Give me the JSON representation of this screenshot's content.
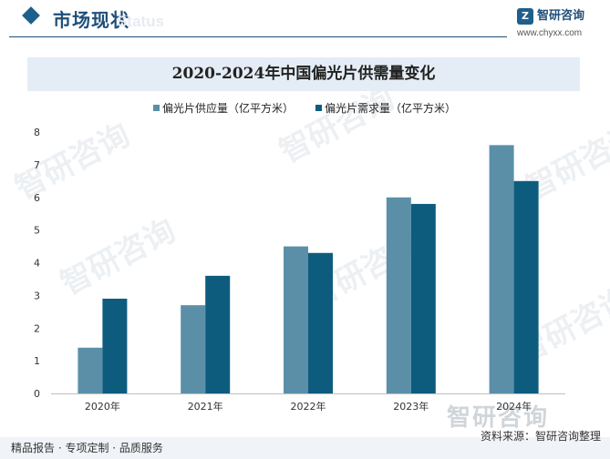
{
  "header": {
    "section_title": "市场现状",
    "section_sub": "Status",
    "brand_name": "智研咨询",
    "brand_url": "www.chyxx.com"
  },
  "watermark": {
    "text": "智研咨询"
  },
  "colors": {
    "supply": "#5b8fa8",
    "demand": "#0d5c7e",
    "accent": "#1f4e79"
  },
  "chart_data": {
    "type": "bar",
    "title": "2020-2024年中国偏光片供需量变化",
    "categories": [
      "2020年",
      "2021年",
      "2022年",
      "2023年",
      "2024年"
    ],
    "series": [
      {
        "name": "偏光片供应量（亿平方米）",
        "values": [
          1.4,
          2.7,
          4.5,
          6.0,
          7.6
        ]
      },
      {
        "name": "偏光片需求量（亿平方米）",
        "values": [
          2.9,
          3.6,
          4.3,
          5.8,
          6.5
        ]
      }
    ],
    "yticks": [
      "0",
      "1",
      "2",
      "3",
      "4",
      "5",
      "6",
      "7",
      "8"
    ],
    "ylim": [
      0,
      8
    ],
    "xlabel": "",
    "ylabel": "",
    "legend_position": "top",
    "grid": false
  },
  "footer": {
    "left": "精品报告 · 专项定制 · 品质服务",
    "source": "资料来源：智研咨询整理"
  }
}
